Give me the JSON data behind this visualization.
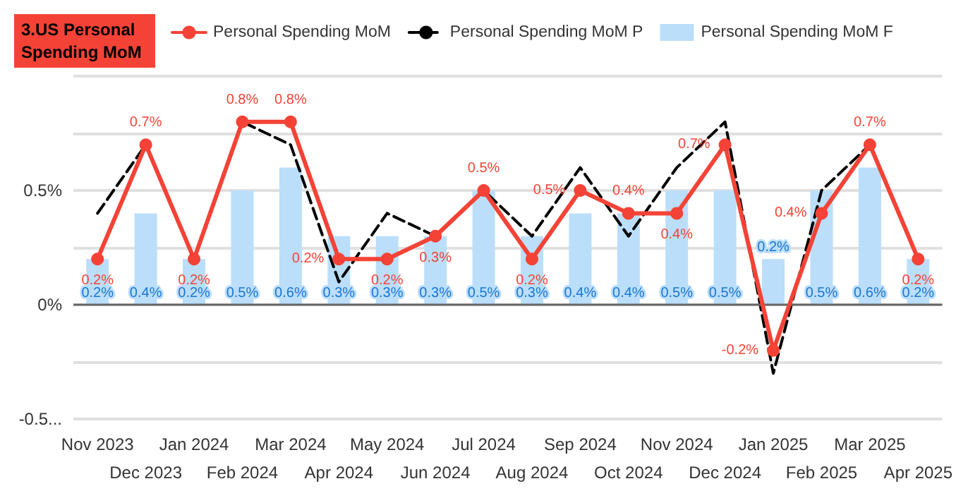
{
  "chart_data": {
    "type": "line",
    "title": "3.US Personal Spending MoM",
    "categories": [
      "Nov 2023",
      "Dec 2023",
      "Jan 2024",
      "Feb 2024",
      "Mar 2024",
      "Apr 2024",
      "May 2024",
      "Jun 2024",
      "Jul 2024",
      "Aug 2024",
      "Sep 2024",
      "Oct 2024",
      "Nov 2024",
      "Dec 2024",
      "Jan 2025",
      "Feb 2025",
      "Mar 2025",
      "Apr 2025"
    ],
    "series": [
      {
        "name": "Personal Spending MoM F",
        "type": "bar",
        "color": "#bbdefb",
        "values": [
          0.2,
          0.4,
          0.2,
          0.5,
          0.6,
          0.3,
          0.3,
          0.3,
          0.5,
          0.3,
          0.4,
          0.4,
          0.5,
          0.5,
          0.2,
          0.5,
          0.6,
          0.2
        ],
        "value_labels": [
          "0.2%",
          "0.4%",
          "0.2%",
          "0.5%",
          "0.6%",
          "0.3%",
          "0.3%",
          "0.3%",
          "0.5%",
          "0.3%",
          "0.4%",
          "0.4%",
          "0.5%",
          "0.5%",
          "0.2%",
          "0.5%",
          "0.6%",
          "0.2%"
        ]
      },
      {
        "name": "Personal Spending MoM",
        "color": "#f44336",
        "marker": "circle",
        "line_style": "solid",
        "values": [
          0.2,
          0.7,
          0.2,
          0.8,
          0.8,
          0.2,
          0.2,
          0.3,
          0.5,
          0.2,
          0.5,
          0.4,
          0.4,
          0.7,
          -0.2,
          0.4,
          0.7,
          0.2
        ],
        "value_labels": [
          "0.2%",
          "0.7%",
          "0.2%",
          "0.8%",
          "0.8%",
          "0.2%",
          "0.2%",
          "0.3%",
          "0.5%",
          "0.2%",
          "0.5%",
          "0.4%",
          "0.4%",
          "0.7%",
          "-0.2%",
          "0.4%",
          "0.7%",
          "0.2%"
        ]
      },
      {
        "name": "Personal Spending MoM P",
        "color": "#000000",
        "marker": "none",
        "line_style": "dashed",
        "values": [
          0.4,
          0.7,
          0.2,
          0.8,
          0.7,
          0.1,
          0.4,
          0.3,
          0.5,
          0.3,
          0.6,
          0.3,
          0.6,
          0.8,
          -0.3,
          0.5,
          0.7,
          null
        ]
      }
    ],
    "ylim": [
      -0.5,
      1
    ],
    "yticks": [
      {
        "value": -0.5,
        "label": "-0.5..."
      },
      {
        "value": -0.25,
        "label": null
      },
      {
        "value": 0,
        "label": "0%"
      },
      {
        "value": 0.25,
        "label": null
      },
      {
        "value": 0.5,
        "label": "0.5%"
      },
      {
        "value": 0.75,
        "label": null
      },
      {
        "value": 1,
        "label": null
      }
    ],
    "grid": "y",
    "legend": "top"
  }
}
